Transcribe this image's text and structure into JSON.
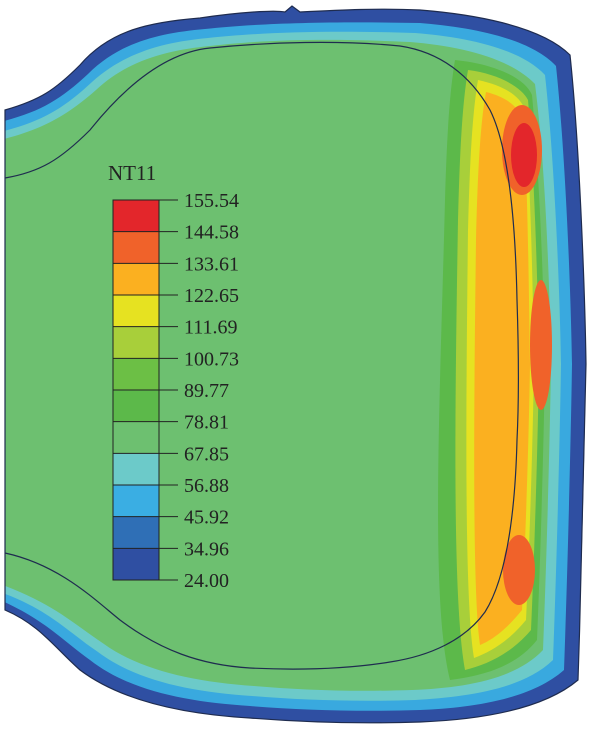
{
  "legend": {
    "title": "NT11",
    "levels": [
      "155.54",
      "144.58",
      "133.61",
      "122.65",
      "111.69",
      "100.73",
      "89.77",
      "78.81",
      "67.85",
      "56.88",
      "45.92",
      "34.96",
      "24.00"
    ],
    "colors": [
      "#e3262b",
      "#f0622a",
      "#fbb020",
      "#e6e221",
      "#a8cf3a",
      "#6cbf45",
      "#5cb94a",
      "#6dc070",
      "#6ccac9",
      "#3aaee3",
      "#2f6fb6",
      "#2f4fa2"
    ]
  }
}
